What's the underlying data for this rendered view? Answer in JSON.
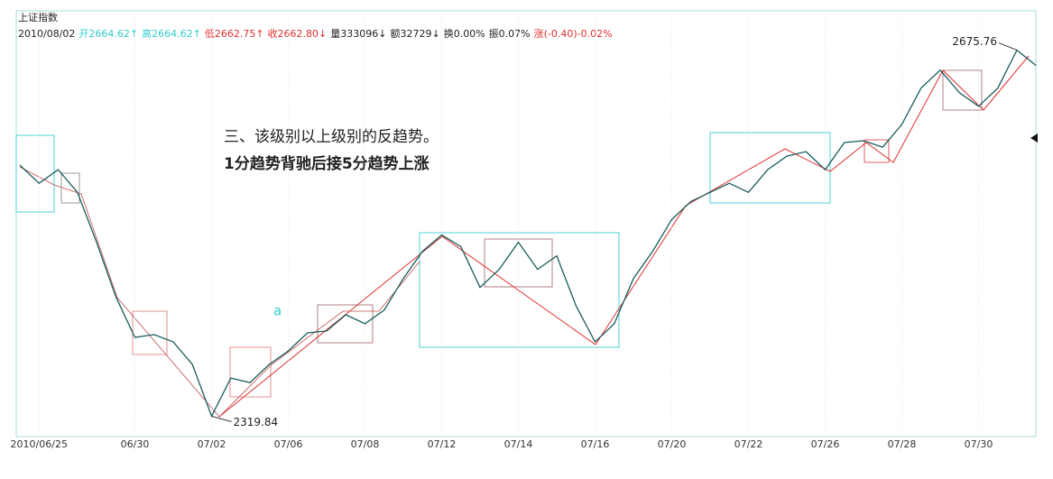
{
  "chart_data": {
    "type": "line",
    "title": "上证指数",
    "header_items": [
      {
        "text": "2010/08/02",
        "color": "#222222"
      },
      {
        "text": "开2664.62↑",
        "color": "#33cccc"
      },
      {
        "text": "高2664.62↑",
        "color": "#33cccc"
      },
      {
        "text": "低2662.75↑",
        "color": "#e03030"
      },
      {
        "text": "收2662.80↓",
        "color": "#e03030"
      },
      {
        "text": "量333096↓",
        "color": "#222222"
      },
      {
        "text": "额32729↓",
        "color": "#222222"
      },
      {
        "text": "换0.00%",
        "color": "#222222"
      },
      {
        "text": "振0.07%",
        "color": "#222222"
      },
      {
        "text": "涨(-0.40)-0.02%",
        "color": "#e03030"
      }
    ],
    "annotations": [
      "三、该级别以上级别的反趋势。",
      "1分趋势背驰后接5分趋势上涨"
    ],
    "marker_label": "a",
    "categories": [
      null,
      "2010/06/25",
      null,
      null,
      null,
      null,
      "06/30",
      null,
      null,
      null,
      "07/02",
      null,
      null,
      null,
      "07/06",
      null,
      null,
      null,
      "07/08",
      null,
      null,
      null,
      "07/12",
      null,
      null,
      null,
      "07/14",
      null,
      null,
      null,
      "07/16",
      null,
      null,
      null,
      "07/20",
      null,
      null,
      null,
      "07/22",
      null,
      null,
      null,
      "07/26",
      null,
      null,
      null,
      "07/28",
      null,
      null,
      null,
      "07/30",
      null,
      null,
      null
    ],
    "series": [
      {
        "color": "#1a5c5c",
        "values": [
          2563.9,
          2546.3,
          2559.5,
          2537.5,
          2489.0,
          2436.2,
          2396.5,
          2399.2,
          2392.1,
          2370.1,
          2319.84,
          2356.9,
          2352.5,
          2370.1,
          2383.3,
          2400.9,
          2402.7,
          2418.5,
          2409.7,
          2423.0,
          2453.8,
          2480.2,
          2496.1,
          2484.6,
          2445.0,
          2462.6,
          2489.0,
          2462.6,
          2475.8,
          2427.4,
          2392.1,
          2409.7,
          2453.8,
          2480.2,
          2511.1,
          2528.7,
          2537.5,
          2546.3,
          2537.5,
          2559.5,
          2572.7,
          2577.1,
          2559.5,
          2585.9,
          2587.7,
          2581.5,
          2603.6,
          2638.8,
          2656.4,
          2634.4,
          2621.2,
          2638.8,
          2675.76,
          2660.8
        ]
      }
    ],
    "ylim": [
      2300,
      2714
    ],
    "low_index": 10,
    "high_index": 52
  }
}
